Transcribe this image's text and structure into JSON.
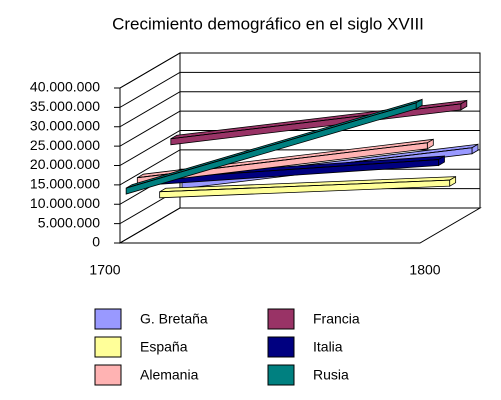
{
  "chart_data": {
    "type": "line3d",
    "title": "Crecimiento demográfico en el siglo XVIII",
    "categories": [
      "1700",
      "1800"
    ],
    "series": [
      {
        "name": "G. Bretaña",
        "color": "#9999ff",
        "values": [
          7000000,
          16000000
        ]
      },
      {
        "name": "Francia",
        "color": "#993366",
        "values": [
          20000000,
          29000000
        ]
      },
      {
        "name": "España",
        "color": "#ffff99",
        "values": [
          8000000,
          11000000
        ]
      },
      {
        "name": "Italia",
        "color": "#000080",
        "values": [
          13000000,
          18000000
        ]
      },
      {
        "name": "Alemania",
        "color": "#ffb3b3",
        "values": [
          15000000,
          24000000
        ]
      },
      {
        "name": "Rusia",
        "color": "#008080",
        "values": [
          14000000,
          36000000
        ]
      }
    ],
    "ylim": [
      0,
      40000000
    ],
    "yticks": [
      0,
      {
        "value": 5000000,
        "label": "5.000.000"
      },
      {
        "value": 10000000,
        "label": "10.000.000"
      },
      {
        "value": 15000000,
        "label": "15.000.000"
      },
      {
        "value": 20000000,
        "label": "20.000.000"
      },
      {
        "value": 25000000,
        "label": "25.000.000"
      },
      {
        "value": 30000000,
        "label": "30.000.000"
      },
      {
        "value": 35000000,
        "label": "35.000.000"
      },
      {
        "value": 40000000,
        "label": "40.000.000"
      }
    ],
    "grid": true
  }
}
